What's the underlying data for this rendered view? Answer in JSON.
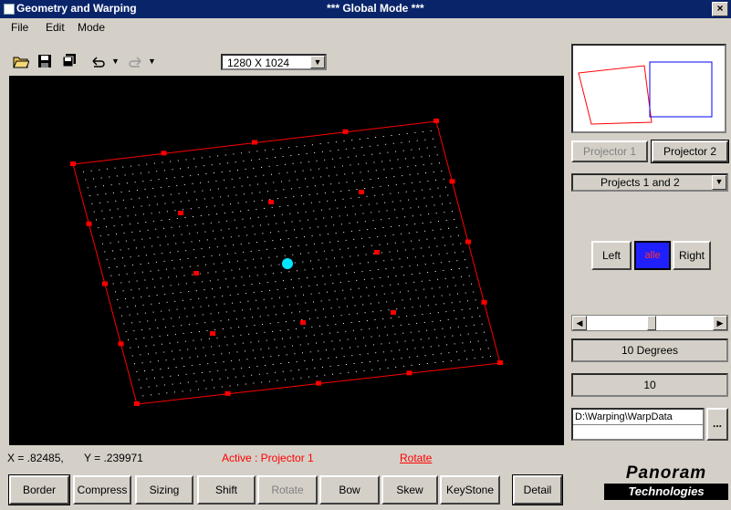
{
  "window": {
    "title": "Geometry and Warping",
    "mode": "*** Global Mode ***",
    "close_label": "×"
  },
  "menu": [
    "File",
    "Edit",
    "Mode"
  ],
  "toolbar": {
    "resolution": "1280 X 1024"
  },
  "status": {
    "x": "X = .82485,",
    "y": "Y = .239971",
    "active": "Active : Projector 1",
    "operation": "Rotate"
  },
  "bottom_buttons": [
    "Border",
    "Compress",
    "Sizing",
    "Shift",
    "Rotate",
    "Bow",
    "Skew",
    "KeyStone",
    "Detail"
  ],
  "projectors": [
    "Projector 1",
    "Projector 2"
  ],
  "projects_select": "Projects 1 and 2",
  "left_label": "Left",
  "right_label": "Right",
  "color_label": "alle",
  "degrees_readout": "10 Degrees",
  "value_readout": "10",
  "path": "D:\\Warping\\WarpData",
  "browse_label": "...",
  "logo": {
    "top": "Panoram",
    "bottom": "Technologies"
  },
  "colors": {
    "titlebar": "#0a246a",
    "warp_border": "#ff0000",
    "grid_dot": "#ffffff",
    "center_point": "#00e5ff"
  },
  "icons": [
    "open-folder-icon",
    "save-icon",
    "save-all-icon",
    "undo-icon",
    "redo-icon"
  ]
}
